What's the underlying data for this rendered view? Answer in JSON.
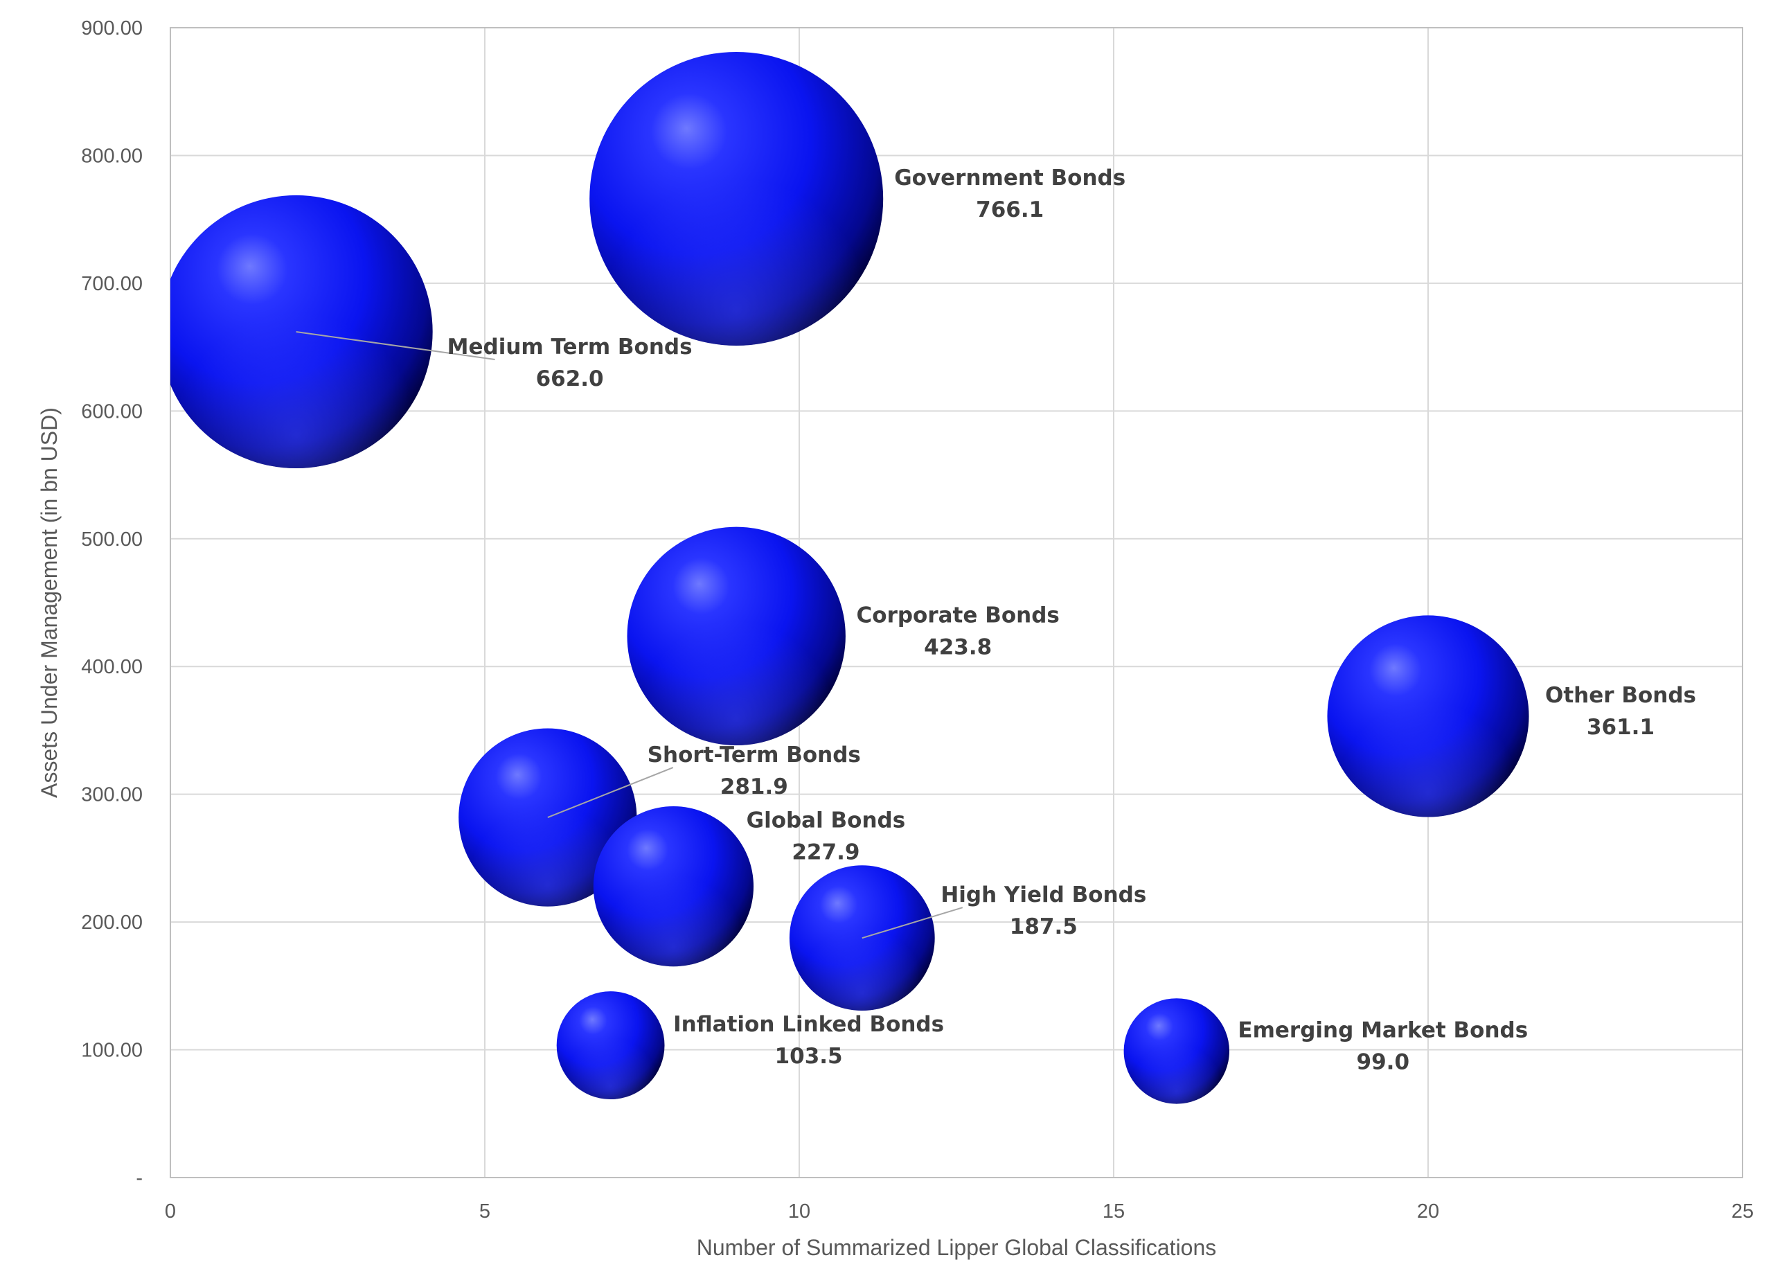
{
  "chart_data": {
    "type": "bubble",
    "xlabel": "Number of Summarized Lipper Global Classifications",
    "ylabel": "Assets Under Management (in bn USD)",
    "xlim": [
      0,
      25
    ],
    "ylim": [
      0,
      900
    ],
    "xticks": [
      0,
      5,
      10,
      15,
      20,
      25
    ],
    "xtick_labels": [
      "0",
      "5",
      "10",
      "15",
      "20",
      "25"
    ],
    "yticks": [
      0,
      100,
      200,
      300,
      400,
      500,
      600,
      700,
      800,
      900
    ],
    "ytick_labels": [
      "-",
      "100.00",
      "200.00",
      "300.00",
      "400.00",
      "500.00",
      "600.00",
      "700.00",
      "800.00",
      "900.00"
    ],
    "grid": true,
    "bubble_color": "#0a14f5",
    "points": [
      {
        "name": "Medium Term Bonds",
        "x": 2,
        "y": 662.0,
        "label": "662.0"
      },
      {
        "name": "Government Bonds",
        "x": 9,
        "y": 766.1,
        "label": "766.1"
      },
      {
        "name": "Corporate Bonds",
        "x": 9,
        "y": 423.8,
        "label": "423.8"
      },
      {
        "name": "Other Bonds",
        "x": 20,
        "y": 361.1,
        "label": "361.1"
      },
      {
        "name": "Short-Term Bonds",
        "x": 6,
        "y": 281.9,
        "label": "281.9"
      },
      {
        "name": "Global Bonds",
        "x": 8,
        "y": 227.9,
        "label": "227.9"
      },
      {
        "name": "High Yield Bonds",
        "x": 11,
        "y": 187.5,
        "label": "187.5"
      },
      {
        "name": "Inflation Linked Bonds",
        "x": 7,
        "y": 103.5,
        "label": "103.5"
      },
      {
        "name": "Emerging Market Bonds",
        "x": 16,
        "y": 99.0,
        "label": "99.0"
      }
    ]
  }
}
